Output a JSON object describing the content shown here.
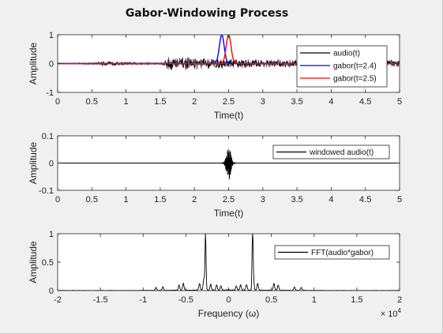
{
  "figure": {
    "title": "Gabor-Windowing Process"
  },
  "chart_data": [
    {
      "type": "line",
      "xlabel": "Time(t)",
      "ylabel": "Amplitude",
      "xlim": [
        0,
        5
      ],
      "ylim": [
        -1,
        1
      ],
      "xticks": [
        "0",
        "0.5",
        "1",
        "1.5",
        "2",
        "2.5",
        "3",
        "3.5",
        "4",
        "4.5",
        "5"
      ],
      "yticks": [
        "-1",
        "0",
        "1"
      ],
      "legend_position": "top-right",
      "series": [
        {
          "name": "audio(t)",
          "color": "#000000",
          "kind": "audio-waveform",
          "envelope": {
            "x": [
              0,
              0.3,
              0.55,
              0.65,
              1.0,
              1.5,
              1.55,
              1.6,
              2.0,
              2.3,
              2.6,
              3.0,
              3.5,
              4.0,
              4.5,
              5.0
            ],
            "amplitude": [
              0.01,
              0.02,
              0.05,
              0.09,
              0.06,
              0.05,
              0.08,
              0.28,
              0.22,
              0.2,
              0.18,
              0.16,
              0.15,
              0.14,
              0.12,
              0.16
            ]
          }
        },
        {
          "name": "gabor(t=2.4)",
          "color": "#0000ff",
          "kind": "gaussian",
          "center": 2.4,
          "sigma": 0.035,
          "peak": 1.0
        },
        {
          "name": "gabor(t=2.5)",
          "color": "#ff0000",
          "kind": "gaussian",
          "center": 2.5,
          "sigma": 0.035,
          "peak": 1.0
        }
      ]
    },
    {
      "type": "line",
      "xlabel": "Time(t)",
      "ylabel": "Amplitude",
      "xlim": [
        0,
        5
      ],
      "ylim": [
        -0.1,
        0.1
      ],
      "xticks": [
        "0",
        "0.5",
        "1",
        "1.5",
        "2",
        "2.5",
        "3",
        "3.5",
        "4",
        "4.5",
        "5"
      ],
      "yticks": [
        "-0.1",
        "0",
        "0.1"
      ],
      "legend_position": "top-right",
      "series": [
        {
          "name": "windowed audio(t)",
          "color": "#000000",
          "kind": "windowed-burst",
          "center": 2.5,
          "sigma": 0.03,
          "peak": 0.065
        }
      ]
    },
    {
      "type": "line",
      "xlabel": "Frequency (ω)",
      "ylabel": "Amplitude",
      "x_multiplier": "× 10^4",
      "xlim": [
        -2,
        2
      ],
      "ylim": [
        0,
        1
      ],
      "xticks": [
        "-2",
        "-1.5",
        "-1",
        "-0.5",
        "0",
        "0.5",
        "1",
        "1.5",
        "2"
      ],
      "yticks": [
        "0",
        "0.5",
        "1"
      ],
      "legend_position": "top-right",
      "series": [
        {
          "name": "FFT(audio*gabor)",
          "color": "#000000",
          "kind": "spectrum",
          "peaks": [
            {
              "x": -0.27,
              "y": 1.0
            },
            {
              "x": 0.28,
              "y": 1.0
            },
            {
              "x": -0.34,
              "y": 0.12
            },
            {
              "x": 0.34,
              "y": 0.12
            },
            {
              "x": -0.29,
              "y": 0.2
            },
            {
              "x": 0.29,
              "y": 0.2
            },
            {
              "x": -0.21,
              "y": 0.1
            },
            {
              "x": 0.21,
              "y": 0.1
            },
            {
              "x": -0.14,
              "y": 0.09
            },
            {
              "x": 0.14,
              "y": 0.09
            },
            {
              "x": -0.53,
              "y": 0.12
            },
            {
              "x": 0.53,
              "y": 0.12
            },
            {
              "x": -0.58,
              "y": 0.09
            },
            {
              "x": 0.58,
              "y": 0.09
            },
            {
              "x": -0.77,
              "y": 0.06
            },
            {
              "x": 0.77,
              "y": 0.06
            },
            {
              "x": -0.85,
              "y": 0.05
            },
            {
              "x": 0.85,
              "y": 0.05
            },
            {
              "x": -0.09,
              "y": 0.07
            },
            {
              "x": 0.09,
              "y": 0.07
            }
          ]
        }
      ]
    }
  ]
}
